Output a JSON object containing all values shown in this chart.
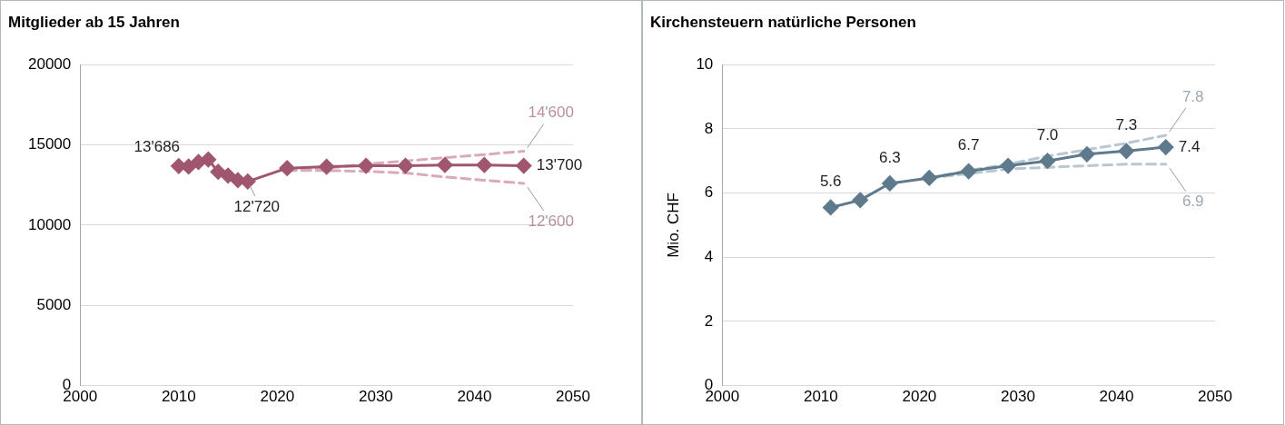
{
  "chart_data": [
    {
      "type": "line",
      "title": "Mitglieder ab 15 Jahren",
      "xlim": [
        2000,
        2050
      ],
      "xticks": [
        2000,
        2010,
        2020,
        2030,
        2040,
        2050
      ],
      "ylim": [
        0,
        20000
      ],
      "yticks": [
        0,
        5000,
        10000,
        15000,
        20000
      ],
      "grid": "y",
      "legend": false,
      "series": [
        {
          "color": "#d9aab8",
          "line_style": "dashed",
          "marker": "none",
          "x": [
            2021,
            2025,
            2029,
            2033,
            2037,
            2041,
            2045
          ],
          "values": [
            13400,
            13550,
            13800,
            14000,
            14200,
            14400,
            14600
          ],
          "value_labels": [
            null,
            null,
            null,
            null,
            null,
            null,
            "14'600"
          ]
        },
        {
          "color": "#d9aab8",
          "line_style": "dashed",
          "marker": "none",
          "x": [
            2021,
            2025,
            2029,
            2033,
            2037,
            2041,
            2045
          ],
          "values": [
            13400,
            13400,
            13350,
            13250,
            13000,
            12800,
            12600
          ],
          "value_labels": [
            null,
            null,
            null,
            null,
            null,
            null,
            "12'600"
          ]
        },
        {
          "color": "#a0566e",
          "line_style": "solid",
          "marker": "diamond",
          "x": [
            2010,
            2011,
            2012,
            2013,
            2014,
            2015,
            2016,
            2017,
            2021,
            2025,
            2029,
            2033,
            2037,
            2041,
            2045
          ],
          "values": [
            13686,
            13650,
            13930,
            14090,
            13320,
            13090,
            12800,
            12720,
            13550,
            13640,
            13700,
            13700,
            13750,
            13750,
            13700
          ],
          "value_labels": [
            "13'686",
            null,
            null,
            null,
            null,
            null,
            null,
            "12'720",
            null,
            null,
            null,
            null,
            null,
            null,
            "13'700"
          ]
        }
      ]
    },
    {
      "type": "line",
      "title": "Kirchensteuern natürliche Personen",
      "ylabel": "Mio. CHF",
      "xlim": [
        2000,
        2050
      ],
      "xticks": [
        2000,
        2010,
        2020,
        2030,
        2040,
        2050
      ],
      "ylim": [
        0,
        10
      ],
      "yticks": [
        0,
        2,
        4,
        6,
        8,
        10
      ],
      "grid": "y",
      "legend": false,
      "series": [
        {
          "color": "#b8c8d2",
          "line_style": "dashed",
          "marker": "none",
          "x": [
            2021,
            2025,
            2029,
            2033,
            2037,
            2041,
            2045
          ],
          "values": [
            6.47,
            6.7,
            6.9,
            7.15,
            7.35,
            7.55,
            7.8
          ],
          "value_labels": [
            null,
            null,
            null,
            null,
            null,
            null,
            "7.8"
          ]
        },
        {
          "color": "#b8c8d2",
          "line_style": "dashed",
          "marker": "none",
          "x": [
            2021,
            2025,
            2029,
            2033,
            2037,
            2041,
            2045
          ],
          "values": [
            6.47,
            6.6,
            6.75,
            6.8,
            6.85,
            6.9,
            6.9
          ],
          "value_labels": [
            null,
            null,
            null,
            null,
            null,
            null,
            "6.9"
          ]
        },
        {
          "color": "#5e7a8c",
          "line_style": "solid",
          "marker": "diamond",
          "x": [
            2011,
            2014,
            2017,
            2021,
            2025,
            2029,
            2033,
            2037,
            2041,
            2045
          ],
          "values": [
            5.55,
            5.78,
            6.3,
            6.47,
            6.68,
            6.85,
            7.0,
            7.21,
            7.31,
            7.43
          ],
          "value_labels": [
            "5.6",
            null,
            "6.3",
            null,
            "6.7",
            null,
            "7.0",
            null,
            "7.3",
            "7.4"
          ]
        }
      ]
    }
  ]
}
